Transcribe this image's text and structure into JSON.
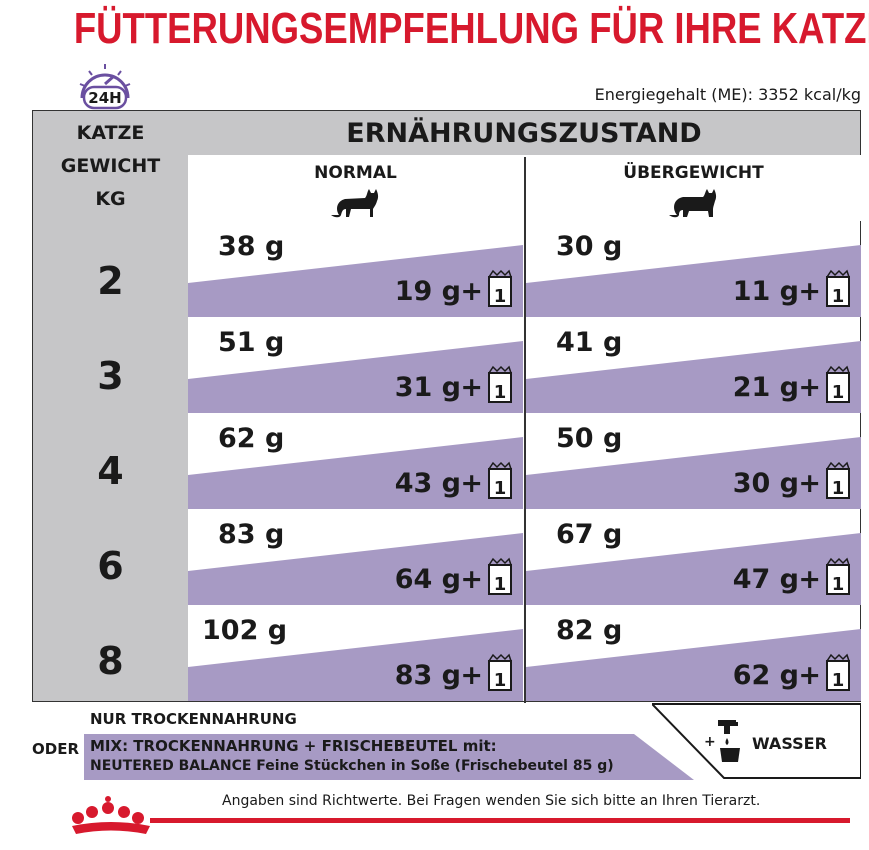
{
  "title": "FÜTTERUNGSEMPFEHLUNG FÜR IHRE KATZE",
  "badge": "24H",
  "energy": "Energiegehalt (ME): 3352 kcal/kg",
  "table": {
    "weight_header": [
      "KATZE",
      "GEWICHT",
      "KG"
    ],
    "main_header": "ERNÄHRUNGSZUSTAND",
    "col_normal": "NORMAL",
    "col_over": "ÜBERGEWICHT",
    "pouch_label": "1",
    "plus": "+",
    "rows": [
      {
        "weight": "2",
        "normal_dry": "38 g",
        "normal_mix": "19 g",
        "over_dry": "30 g",
        "over_mix": "11 g"
      },
      {
        "weight": "3",
        "normal_dry": "51 g",
        "normal_mix": "31 g",
        "over_dry": "41 g",
        "over_mix": "21 g"
      },
      {
        "weight": "4",
        "normal_dry": "62 g",
        "normal_mix": "43 g",
        "over_dry": "50 g",
        "over_mix": "30 g"
      },
      {
        "weight": "6",
        "normal_dry": "83 g",
        "normal_mix": "64 g",
        "over_dry": "67 g",
        "over_mix": "47 g"
      },
      {
        "weight": "8",
        "normal_dry": "102 g",
        "normal_mix": "83 g",
        "over_dry": "82 g",
        "over_mix": "62 g"
      }
    ]
  },
  "legend": {
    "dry": "NUR TROCKENNAHRUNG",
    "or": "ODER",
    "mix_line1": "MIX: TROCKENNAHRUNG + FRISCHEBEUTEL mit:",
    "mix_line2": "NEUTERED BALANCE Feine Stückchen in Soße (Frischebeutel 85 g)",
    "water_plus": "+",
    "water": "WASSER"
  },
  "footer": "Angaben sind Richtwerte. Bei Fragen wenden Sie sich bitte an Ihren Tierarzt.",
  "colors": {
    "red": "#d7192d",
    "purple": "#a79ac4",
    "grey": "#c6c6c8",
    "clock": "#6a4fa0"
  }
}
